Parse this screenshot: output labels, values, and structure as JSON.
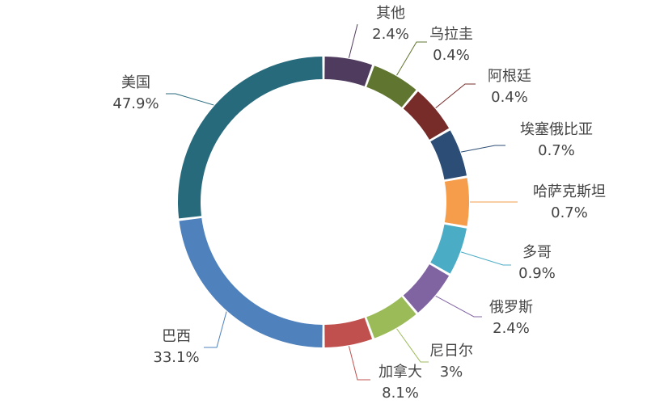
{
  "chart_data": {
    "type": "pie",
    "donut": true,
    "title": "",
    "legend": "none",
    "slices": [
      {
        "name": "其他",
        "label": "2.4%",
        "color": "#4f3b5e"
      },
      {
        "name": "乌拉圭",
        "label": "0.4%",
        "color": "#5f7530"
      },
      {
        "name": "阿根廷",
        "label": "0.4%",
        "color": "#772c2a"
      },
      {
        "name": "埃塞俄比亚",
        "label": "0.7%",
        "color": "#2c4d75"
      },
      {
        "name": "哈萨克斯坦",
        "label": "0.7%",
        "color": "#f59d4a"
      },
      {
        "name": "多哥",
        "label": "0.9%",
        "color": "#4bacc6"
      },
      {
        "name": "俄罗斯",
        "label": "2.4%",
        "color": "#8064a2"
      },
      {
        "name": "尼日尔",
        "label": "3%",
        "color": "#9bbb59"
      },
      {
        "name": "加拿大",
        "label": "8.1%",
        "color": "#c0504d"
      },
      {
        "name": "巴西",
        "label": "33.1%",
        "color": "#4f81bd"
      },
      {
        "name": "美国",
        "label": "47.9%",
        "color": "#276a7c"
      }
    ]
  }
}
